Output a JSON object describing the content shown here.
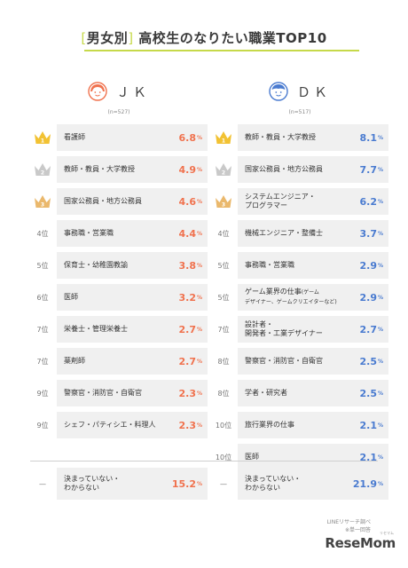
{
  "title": {
    "bracket_open": "[",
    "tag": "男女別",
    "bracket_close": "]",
    "text": " 高校生のなりたい職業TOP10"
  },
  "colors": {
    "accent_line": "#c6d94a",
    "jk_value": "#f0724e",
    "dk_value": "#4a7bd0",
    "gold": "#f2c233",
    "silver": "#c9c9c9",
    "bronze": "#eab86c"
  },
  "chart_data": [
    {
      "type": "table",
      "label": "ＪＫ",
      "count": "(n=527)",
      "icon": "girl-face-icon",
      "unit": "%",
      "rows": [
        {
          "rank": "1",
          "badge": "gold-crown-icon",
          "job": "看護師",
          "value": 6.8
        },
        {
          "rank": "2",
          "badge": "silver-crown-icon",
          "job": "教師・教員・大学教授",
          "value": 4.9
        },
        {
          "rank": "3",
          "badge": "bronze-crown-icon",
          "job": "国家公務員・地方公務員",
          "value": 4.6
        },
        {
          "rank": "4位",
          "job": "事務職・営業職",
          "value": 4.4
        },
        {
          "rank": "5位",
          "job": "保育士・幼稚園教諭",
          "value": 3.8
        },
        {
          "rank": "6位",
          "job": "医師",
          "value": 3.2
        },
        {
          "rank": "7位",
          "job": "栄養士・管理栄養士",
          "value": 2.7
        },
        {
          "rank": "7位",
          "job": "薬剤師",
          "value": 2.7
        },
        {
          "rank": "9位",
          "job": "警察官・消防官・自衛官",
          "value": 2.3
        },
        {
          "rank": "9位",
          "job": "シェフ・パティシエ・料理人",
          "value": 2.3
        }
      ],
      "other": {
        "rank": "—",
        "job_line1": "決まっていない・",
        "job_line2": "わからない",
        "value": 15.2
      }
    },
    {
      "type": "table",
      "label": "ＤＫ",
      "count": "(n=517)",
      "icon": "boy-face-icon",
      "unit": "%",
      "rows": [
        {
          "rank": "1",
          "badge": "gold-crown-icon",
          "job": "教師・教員・大学教授",
          "value": 8.1
        },
        {
          "rank": "2",
          "badge": "silver-crown-icon",
          "job": "国家公務員・地方公務員",
          "value": 7.7
        },
        {
          "rank": "3",
          "badge": "bronze-crown-icon",
          "job_line1": "システムエンジニア・",
          "job_line2": "プログラマー",
          "value": 6.2
        },
        {
          "rank": "4位",
          "job": "機械エンジニア・整備士",
          "value": 3.7
        },
        {
          "rank": "5位",
          "job": "事務職・営業職",
          "value": 2.9
        },
        {
          "rank": "5位",
          "job_line1": "ゲーム業界の仕事",
          "job_sub1": "(ゲーム",
          "job_sub2": "デザイナー、ゲームクリエイターなど)",
          "value": 2.9
        },
        {
          "rank": "7位",
          "job_line1": "設計者・",
          "job_line2": "開発者・工業デザイナー",
          "value": 2.7
        },
        {
          "rank": "8位",
          "job": "警察官・消防官・自衛官",
          "value": 2.5
        },
        {
          "rank": "8位",
          "job": "学者・研究者",
          "value": 2.5
        },
        {
          "rank": "10位",
          "job": "旅行業界の仕事",
          "value": 2.1
        },
        {
          "rank": "10位",
          "job": "医師",
          "value": 2.1
        }
      ],
      "other": {
        "rank": "—",
        "job_line1": "決まっていない・",
        "job_line2": "わからない",
        "value": 21.9
      }
    }
  ],
  "source": {
    "line1": "LINEリサーチ調べ",
    "line2": "※単一回答"
  },
  "brand": {
    "name": "ReseMom",
    "ruby": "リセマム"
  }
}
